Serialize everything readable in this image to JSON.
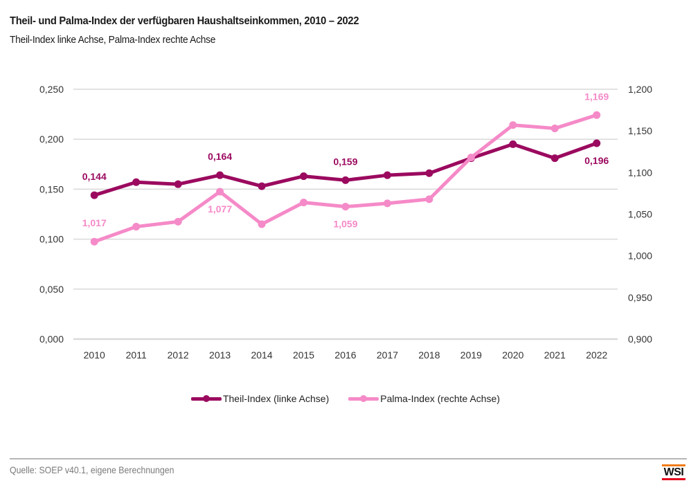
{
  "header": {
    "title": "Theil- und Palma-Index der verfügbaren Haushaltseinkommen, 2010 – 2022",
    "subtitle": "Theil-Index linke Achse, Palma-Index rechte Achse"
  },
  "chart_data": {
    "type": "line",
    "title": "Theil- und Palma-Index der verfügbaren Haushaltseinkommen, 2010 – 2022",
    "subtitle": "Theil-Index linke Achse, Palma-Index rechte Achse",
    "categories": [
      "2010",
      "2011",
      "2012",
      "2013",
      "2014",
      "2015",
      "2016",
      "2017",
      "2018",
      "2019",
      "2020",
      "2021",
      "2022"
    ],
    "series": [
      {
        "name": "Theil-Index (linke Achse)",
        "axis": "left",
        "color": "#9b0a5f",
        "values": [
          0.144,
          0.157,
          0.155,
          0.164,
          0.153,
          0.163,
          0.159,
          0.164,
          0.166,
          0.181,
          0.195,
          0.181,
          0.196
        ],
        "data_labels": [
          {
            "index": 0,
            "text": "0,144",
            "position": "above"
          },
          {
            "index": 3,
            "text": "0,164",
            "position": "above"
          },
          {
            "index": 6,
            "text": "0,159",
            "position": "above"
          },
          {
            "index": 12,
            "text": "0,196",
            "position": "below"
          }
        ]
      },
      {
        "name": "Palma-Index (rechte Achse)",
        "axis": "right",
        "color": "#f58ac8",
        "values": [
          1.017,
          1.035,
          1.041,
          1.077,
          1.038,
          1.064,
          1.059,
          1.063,
          1.068,
          1.118,
          1.157,
          1.153,
          1.169
        ],
        "data_labels": [
          {
            "index": 0,
            "text": "1,017",
            "position": "above"
          },
          {
            "index": 3,
            "text": "1,077",
            "position": "below"
          },
          {
            "index": 6,
            "text": "1,059",
            "position": "below"
          },
          {
            "index": 12,
            "text": "1,169",
            "position": "above"
          }
        ]
      }
    ],
    "left_axis": {
      "ylim": [
        0,
        0.25
      ],
      "ticks": [
        0,
        0.05,
        0.1,
        0.15,
        0.2,
        0.25
      ],
      "tick_labels": [
        "0,000",
        "0,050",
        "0,100",
        "0,150",
        "0,200",
        "0,250"
      ]
    },
    "right_axis": {
      "ylim": [
        0.9,
        1.2
      ],
      "ticks": [
        0.9,
        0.95,
        1.0,
        1.05,
        1.1,
        1.15,
        1.2
      ],
      "tick_labels": [
        "0,900",
        "0,950",
        "1,000",
        "1,050",
        "1,100",
        "1,150",
        "1,200"
      ]
    },
    "xlabel": "",
    "ylabel": "",
    "grid": true,
    "legend": "bottom-center"
  },
  "legend": {
    "items": [
      {
        "label": "Theil-Index (linke Achse)",
        "color": "#9b0a5f"
      },
      {
        "label": "Palma-Index (rechte Achse)",
        "color": "#f58ac8"
      }
    ]
  },
  "footer": {
    "source": "Quelle: SOEP v40.1, eigene Berechnungen",
    "logo": "WSI"
  }
}
